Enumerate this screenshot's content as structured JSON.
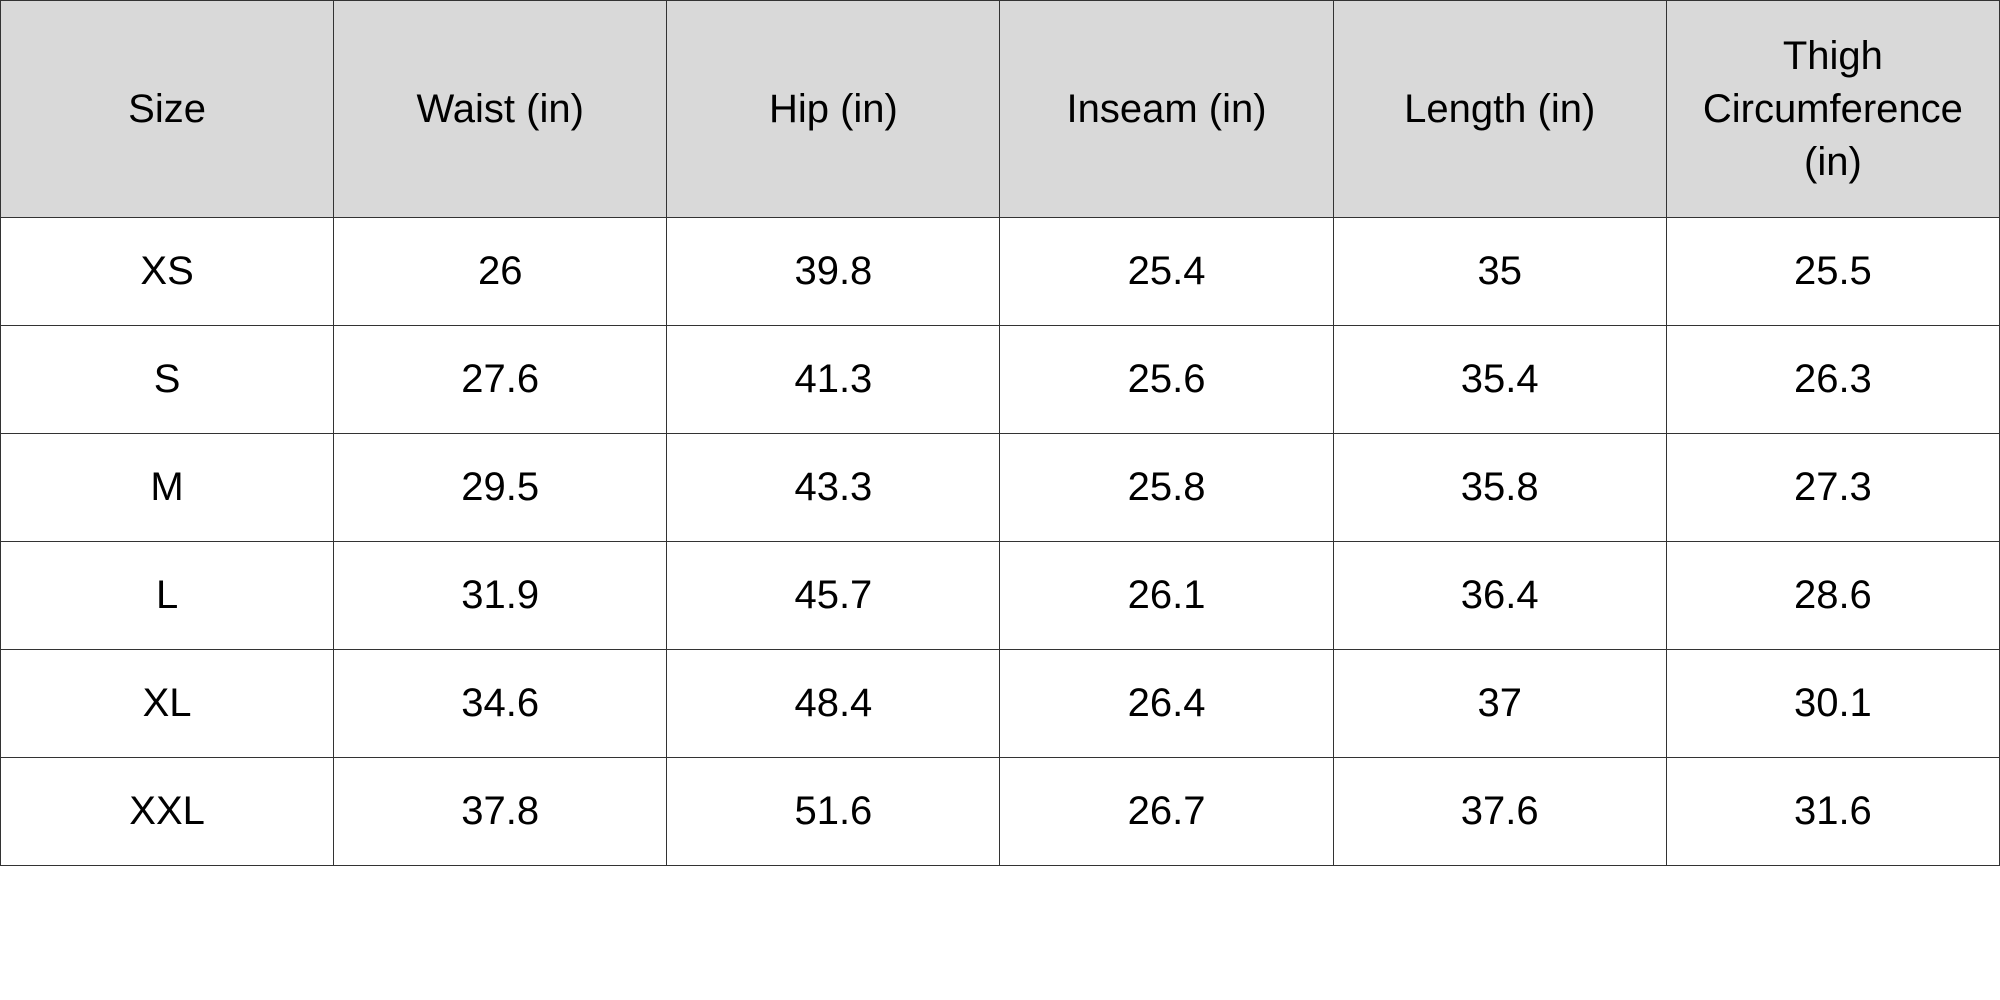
{
  "table": {
    "headers": [
      "Size",
      "Waist (in)",
      "Hip (in)",
      "Inseam (in)",
      "Length (in)",
      "Thigh Circumference (in)"
    ],
    "rows": [
      [
        "XS",
        "26",
        "39.8",
        "25.4",
        "35",
        "25.5"
      ],
      [
        "S",
        "27.6",
        "41.3",
        "25.6",
        "35.4",
        "26.3"
      ],
      [
        "M",
        "29.5",
        "43.3",
        "25.8",
        "35.8",
        "27.3"
      ],
      [
        "L",
        "31.9",
        "45.7",
        "26.1",
        "36.4",
        "28.6"
      ],
      [
        "XL",
        "34.6",
        "48.4",
        "26.4",
        "37",
        "30.1"
      ],
      [
        "XXL",
        "37.8",
        "51.6",
        "26.7",
        "37.6",
        "31.6"
      ]
    ]
  },
  "colors": {
    "header_background": "#d9d9d9",
    "border": "#333333",
    "text": "#000000"
  }
}
